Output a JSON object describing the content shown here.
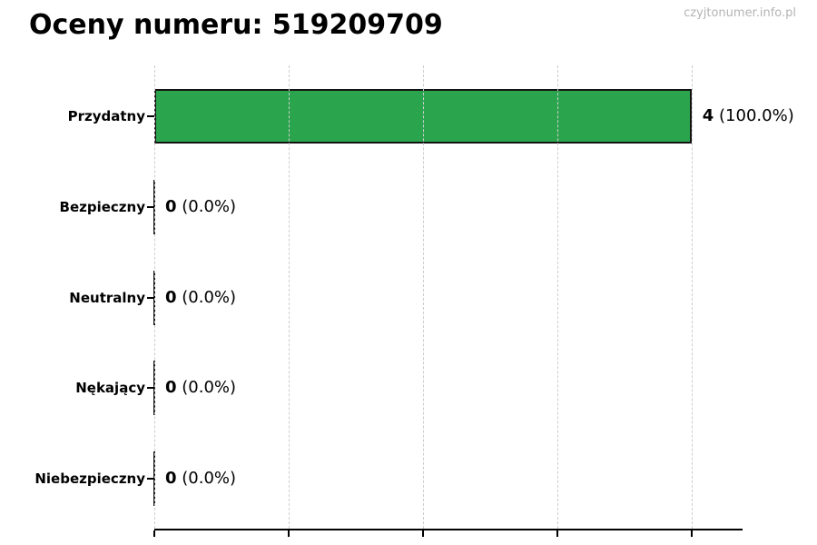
{
  "header": {
    "title": "Oceny numeru: 519209709",
    "watermark": "czyjtonumer.info.pl"
  },
  "chart_data": {
    "type": "bar",
    "orientation": "horizontal",
    "title": "Oceny numeru: 519209709",
    "categories": [
      "Przydatny",
      "Bezpieczny",
      "Neutralny",
      "Nękający",
      "Niebezpieczny"
    ],
    "values": [
      4,
      0,
      0,
      0,
      0
    ],
    "percents": [
      100.0,
      0.0,
      0.0,
      0.0,
      0.0
    ],
    "counts": [
      "4",
      "0",
      "0",
      "0",
      "0"
    ],
    "pcts": [
      "(100.0%)",
      "(0.0%)",
      "(0.0%)",
      "(0.0%)",
      "(0.0%)"
    ],
    "xlim": [
      0,
      4.38
    ],
    "x_ticks": [
      0,
      1,
      2,
      3,
      4
    ],
    "x_tick_labels_visible": false,
    "grid": "vertical-dashed",
    "legend": "none",
    "bar_color": "#2aa44d",
    "bar_edge_color": "#141414",
    "gridline_color": "#cdcdcd",
    "watermark": "czyjtonumer.info.pl"
  }
}
